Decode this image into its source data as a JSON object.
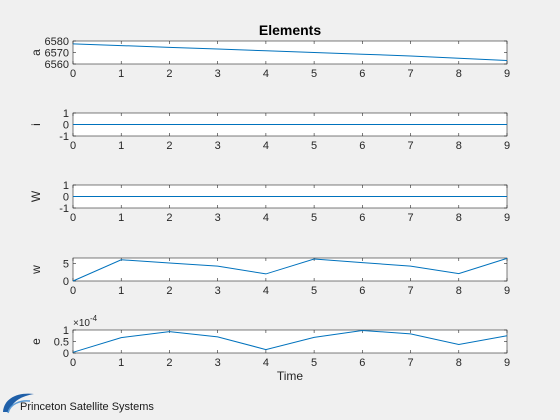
{
  "figure_title": "Elements",
  "footer": {
    "company": "Princeton Satellite Systems"
  },
  "chart_data": [
    {
      "type": "line",
      "title": "Elements",
      "ylabel": "a",
      "xlabel": "",
      "x": [
        0,
        1,
        2,
        3,
        4,
        5,
        6,
        7,
        8,
        9
      ],
      "xlim": [
        0,
        9
      ],
      "ylim": [
        6560,
        6580
      ],
      "yticks": [
        "6560",
        "6570",
        "6580"
      ],
      "xticks": [
        "0",
        "1",
        "2",
        "3",
        "4",
        "5",
        "6",
        "7",
        "8",
        "9"
      ],
      "series": [
        {
          "values": [
            6577.5,
            6576.0,
            6574.5,
            6573.0,
            6571.5,
            6570.0,
            6568.5,
            6567.0,
            6565.0,
            6563.0
          ]
        }
      ],
      "color": "#0072bd",
      "grid": false
    },
    {
      "type": "line",
      "ylabel": "i",
      "xlabel": "",
      "x": [
        0,
        1,
        2,
        3,
        4,
        5,
        6,
        7,
        8,
        9
      ],
      "xlim": [
        0,
        9
      ],
      "ylim": [
        -1,
        1
      ],
      "yticks": [
        "-1",
        "0",
        "1"
      ],
      "xticks": [
        "0",
        "1",
        "2",
        "3",
        "4",
        "5",
        "6",
        "7",
        "8",
        "9"
      ],
      "series": [
        {
          "values": [
            0,
            0,
            0,
            0,
            0,
            0,
            0,
            0,
            0,
            0
          ]
        }
      ],
      "color": "#0072bd",
      "grid": false
    },
    {
      "type": "line",
      "ylabel": "W",
      "xlabel": "",
      "x": [
        0,
        1,
        2,
        3,
        4,
        5,
        6,
        7,
        8,
        9
      ],
      "xlim": [
        0,
        9
      ],
      "ylim": [
        -1,
        1
      ],
      "yticks": [
        "-1",
        "0",
        "1"
      ],
      "xticks": [
        "0",
        "1",
        "2",
        "3",
        "4",
        "5",
        "6",
        "7",
        "8",
        "9"
      ],
      "series": [
        {
          "values": [
            0,
            0,
            0,
            0,
            0,
            0,
            0,
            0,
            0,
            0
          ]
        }
      ],
      "color": "#0072bd",
      "grid": false
    },
    {
      "type": "line",
      "ylabel": "w",
      "xlabel": "",
      "x": [
        0,
        1,
        2,
        3,
        4,
        5,
        6,
        7,
        8,
        9
      ],
      "xlim": [
        0,
        9
      ],
      "ylim": [
        0,
        6.5
      ],
      "yticks": [
        "0",
        "5"
      ],
      "xticks": [
        "0",
        "1",
        "2",
        "3",
        "4",
        "5",
        "6",
        "7",
        "8",
        "9"
      ],
      "series": [
        {
          "values": [
            0,
            6.0,
            5.1,
            4.2,
            2.0,
            6.2,
            5.2,
            4.2,
            2.1,
            6.4
          ]
        }
      ],
      "color": "#0072bd",
      "grid": false
    },
    {
      "type": "line",
      "ylabel": "e",
      "xlabel": "Time",
      "exponent": "×10",
      "exponent_power": "-4",
      "x": [
        0,
        1,
        2,
        3,
        4,
        5,
        6,
        7,
        8,
        9
      ],
      "xlim": [
        0,
        9
      ],
      "ylim": [
        0,
        1
      ],
      "yticks": [
        "0",
        "0.5",
        "1"
      ],
      "xticks": [
        "0",
        "1",
        "2",
        "3",
        "4",
        "5",
        "6",
        "7",
        "8",
        "9"
      ],
      "series": [
        {
          "values": [
            0.03,
            0.67,
            0.93,
            0.7,
            0.15,
            0.68,
            0.98,
            0.83,
            0.37,
            0.75
          ]
        }
      ],
      "color": "#0072bd",
      "grid": false
    }
  ]
}
